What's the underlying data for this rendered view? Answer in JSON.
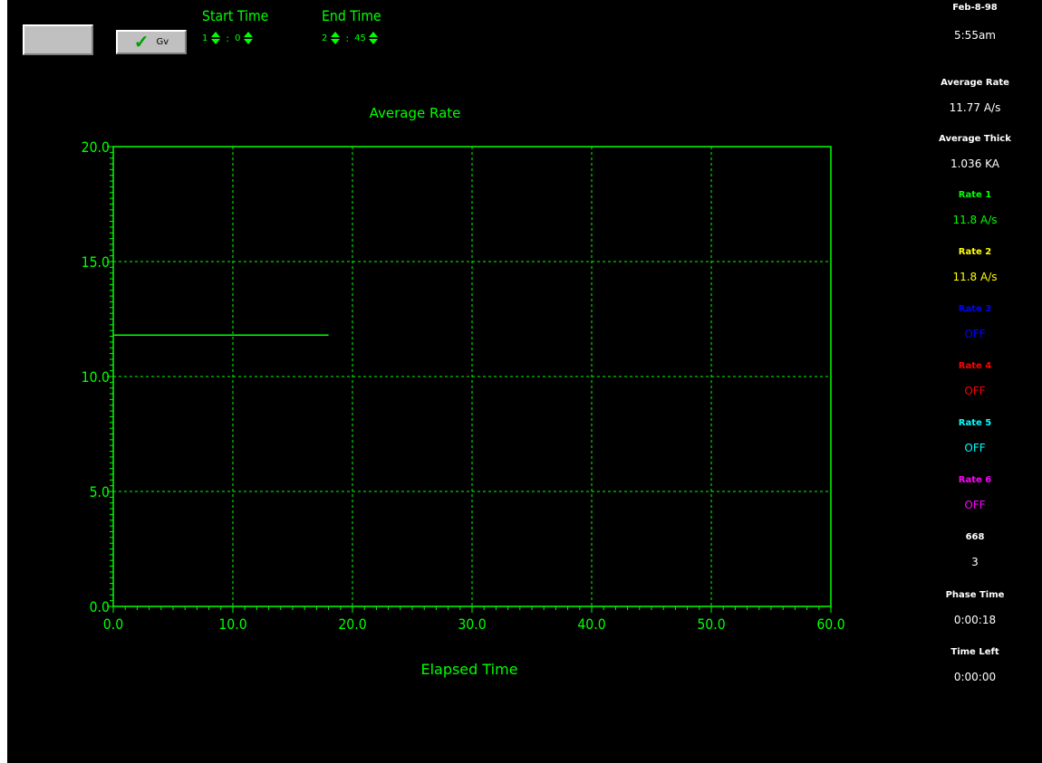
{
  "controls": {
    "go_label": "Gv",
    "start_time": {
      "title": "Start Time",
      "hours": "1",
      "minutes": "0"
    },
    "end_time": {
      "title": "End Time",
      "hours": "2",
      "minutes": "45"
    },
    "separator": ":"
  },
  "status_panel": {
    "date": "Feb-8-98",
    "clock": "5:55am",
    "average_rate_label": "Average Rate",
    "average_rate_value": "11.77 A/s",
    "average_thick_label": "Average Thick",
    "average_thick_value": "1.036 KA",
    "rate1_label": "Rate 1",
    "rate1_value": "11.8 A/s",
    "rate2_label": "Rate 2",
    "rate2_value": "11.8 A/s",
    "rate3_label": "Rate 3",
    "rate3_value": "OFF",
    "rate4_label": "Rate 4",
    "rate4_value": "OFF",
    "rate5_label": "Rate 5",
    "rate5_value": "OFF",
    "rate6_label": "Rate 6",
    "rate6_value": "OFF",
    "step_label": "668",
    "step_value": "3",
    "phase_time_label": "Phase Time",
    "phase_time_value": "0:00:18",
    "time_left_label": "Time Left",
    "time_left_value": "0:00:00"
  },
  "colors": {
    "background": "#000000",
    "plot": "#00ff00",
    "rate1": "#00ff00",
    "rate2": "#ffff00",
    "rate3": "#0000ff",
    "rate4": "#ff0000",
    "rate5": "#00ffff",
    "rate6": "#ff00ff",
    "neutral": "#ffffff"
  },
  "chart_data": {
    "type": "line",
    "title": "Average Rate",
    "xlabel": "Elapsed Time",
    "ylabel": "",
    "xlim": [
      0,
      60
    ],
    "ylim": [
      0,
      20
    ],
    "x_ticks": [
      "0.0",
      "10.0",
      "20.0",
      "30.0",
      "40.0",
      "50.0",
      "60.0"
    ],
    "y_ticks": [
      "0.0",
      "5.0",
      "10.0",
      "15.0",
      "20.0"
    ],
    "grid": true,
    "series": [
      {
        "x": [
          0,
          18
        ],
        "y": [
          11.8,
          11.8
        ]
      }
    ]
  }
}
